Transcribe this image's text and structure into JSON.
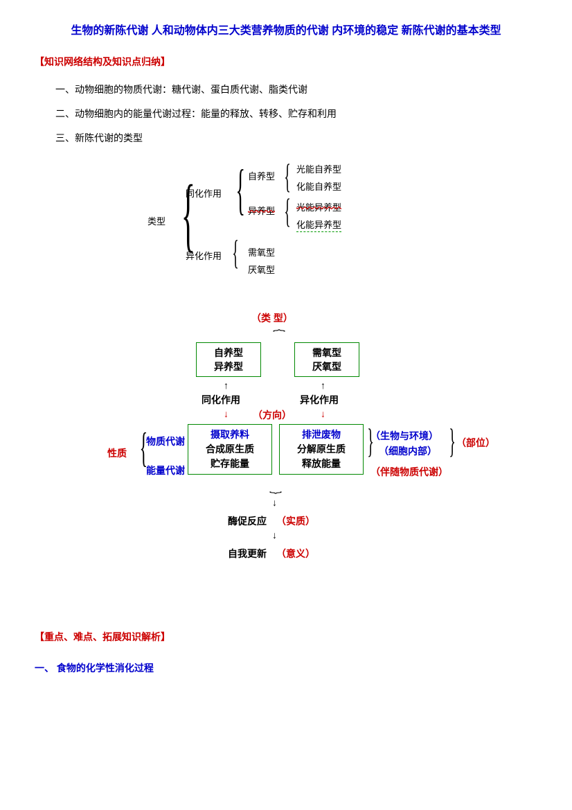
{
  "title": "生物的新陈代谢 人和动物体内三大类营养物质的代谢 内环境的稳定 新陈代谢的基本类型",
  "section1_header": "【知识网络结构及知识点归纳】",
  "para1": "一、动物细胞的物质代谢：糖代谢、蛋白质代谢、脂类代谢",
  "para2": "二、动物细胞内的能量代谢过程：能量的释放、转移、贮存和利用",
  "para3": "三、新陈代谢的类型",
  "tree": {
    "root": "类型",
    "l2a": "同化作用",
    "l2b": "异化作用",
    "l3a": "自养型",
    "l3b": "异养型",
    "l3c": "需氧型",
    "l3d": "厌氧型",
    "l4a": "光能自养型",
    "l4b": "化能自养型",
    "l4c": "光能异养型",
    "l4d": "化能异养型"
  },
  "flow": {
    "type_label": "（类 型）",
    "box_tl_1": "自养型",
    "box_tl_2": "异养型",
    "box_tr_1": "需氧型",
    "box_tr_2": "厌氧型",
    "tonghua": "同化作用",
    "yihua": "异化作用",
    "fangxiang": "（方向）",
    "xingzhi": "性质",
    "wuzhi": "物质代谢",
    "nengliang": "能量代谢",
    "ml_1": "摄取养料",
    "ml_2": "合成原生质",
    "ml_3": "贮存能量",
    "mr_1": "排泄废物",
    "mr_2": "分解原生质",
    "mr_3": "释放能量",
    "shengwu": "（生物与环境）",
    "xibao": "（细胞内部）",
    "buwei": "（部位）",
    "bansui": "（伴随物质代谢）",
    "mei": "酶促反应",
    "shizhi": "（实质）",
    "ziwo": "自我更新",
    "yiyi": "（意义）"
  },
  "section2_header": "【重点、难点、拓展知识解析】",
  "section3_header": "一、 食物的化学性消化过程",
  "colors": {
    "red": "#cc0000",
    "blue": "#0000cc",
    "green": "#008800"
  }
}
